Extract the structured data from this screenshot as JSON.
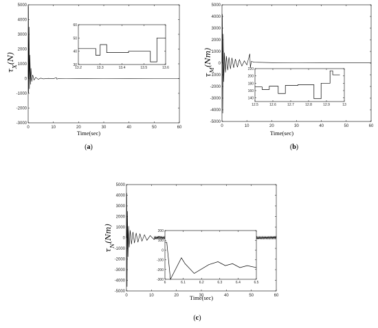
{
  "chart_data": [
    {
      "type": "line",
      "caption": "(a)",
      "ylabel": "τX(N)",
      "xlabel": "Time(sec)",
      "xlim": [
        0,
        60
      ],
      "ylim": [
        -3000,
        5000
      ],
      "xticks": [
        0,
        10,
        20,
        30,
        40,
        50,
        60
      ],
      "yticks": [
        -3000,
        -2000,
        -1000,
        0,
        1000,
        2000,
        3000,
        4000,
        5000
      ],
      "series": [
        {
          "x": [
            0,
            0.1,
            0.2,
            0.35,
            0.5,
            0.7,
            0.9,
            1.1,
            1.4,
            1.8,
            2.3,
            3,
            4,
            5,
            6,
            8,
            10,
            11.2,
            11.4,
            12,
            15,
            20,
            30,
            40,
            50,
            60
          ],
          "y": [
            0,
            4900,
            -1000,
            3500,
            -700,
            1600,
            -400,
            700,
            -200,
            250,
            -100,
            80,
            -50,
            30,
            -20,
            15,
            -10,
            60,
            -40,
            10,
            0,
            5,
            0,
            3,
            0,
            0
          ]
        }
      ],
      "inset": {
        "xlim": [
          13.2,
          13.6
        ],
        "ylim": [
          30,
          60
        ],
        "xticks": [
          13.2,
          13.3,
          13.4,
          13.5,
          13.6
        ],
        "yticks": [
          30,
          40,
          50,
          60
        ],
        "series": [
          {
            "x": [
              13.2,
              13.28,
              13.28,
              13.3,
              13.3,
              13.33,
              13.33,
              13.43,
              13.43,
              13.53,
              13.53,
              13.56,
              13.56,
              13.6
            ],
            "y": [
              42,
              42,
              37,
              37,
              45,
              45,
              39,
              39,
              40,
              40,
              32,
              32,
              50,
              50
            ]
          }
        ]
      }
    },
    {
      "type": "line",
      "caption": "(b)",
      "ylabel": "τM(Nm)",
      "xlabel": "Time(sec)",
      "xlim": [
        0,
        60
      ],
      "ylim": [
        -5000,
        5000
      ],
      "xticks": [
        0,
        10,
        20,
        30,
        40,
        50,
        60
      ],
      "yticks": [
        -5000,
        -4000,
        -3000,
        -2000,
        -1000,
        0,
        1000,
        2000,
        3000,
        4000,
        5000
      ],
      "series": [
        {
          "x": [
            0,
            0.15,
            0.3,
            0.5,
            0.7,
            1,
            1.4,
            1.8,
            2.3,
            2.8,
            3.4,
            4,
            4.7,
            5.4,
            6.2,
            7,
            8,
            9,
            10,
            11.2,
            11.4,
            11.8,
            13,
            16,
            20,
            30,
            40,
            50,
            60
          ],
          "y": [
            0,
            4200,
            -4300,
            2500,
            -1600,
            900,
            -800,
            600,
            -600,
            500,
            -500,
            450,
            -400,
            350,
            -350,
            300,
            -250,
            200,
            -150,
            800,
            -400,
            150,
            80,
            60,
            40,
            30,
            20,
            20,
            20
          ]
        }
      ],
      "inset": {
        "xlim": [
          12.5,
          13
        ],
        "ylim": [
          130,
          220
        ],
        "xticks": [
          12.5,
          12.6,
          12.7,
          12.8,
          12.9,
          13
        ],
        "yticks": [
          140,
          160,
          180,
          200,
          220
        ],
        "series": [
          {
            "x": [
              12.5,
              12.54,
              12.54,
              12.58,
              12.58,
              12.63,
              12.63,
              12.67,
              12.67,
              12.74,
              12.74,
              12.83,
              12.83,
              12.87,
              12.87,
              12.92,
              12.92,
              12.935,
              12.935,
              12.975
            ],
            "y": [
              170,
              170,
              163,
              163,
              172,
              172,
              152,
              152,
              174,
              174,
              176,
              176,
              138,
              138,
              180,
              180,
              214,
              214,
              203,
              203
            ]
          }
        ]
      }
    },
    {
      "type": "line",
      "caption": "(c)",
      "ylabel": "τN(Nm)",
      "xlabel": "Time(sec)",
      "xlim": [
        0,
        60
      ],
      "ylim": [
        -5000,
        5000
      ],
      "xticks": [
        0,
        10,
        20,
        30,
        40,
        50,
        60
      ],
      "yticks": [
        -5000,
        -4000,
        -3000,
        -2000,
        -1000,
        0,
        1000,
        2000,
        3000,
        4000,
        5000
      ],
      "series": [
        {
          "x": [
            0,
            0.12,
            0.25,
            0.4,
            0.6,
            0.85,
            1.1,
            1.5,
            2,
            2.6,
            3.2,
            3.9,
            4.6,
            5.4,
            6.2,
            7.2,
            8.2,
            9.5,
            11,
            13,
            16,
            20,
            30,
            40,
            50,
            60
          ],
          "y": [
            0,
            4200,
            -4600,
            2500,
            -1800,
            1100,
            -900,
            700,
            -600,
            550,
            -500,
            450,
            -420,
            380,
            -320,
            280,
            -240,
            200,
            -160,
            130,
            -120,
            120,
            -120,
            120,
            -120,
            100
          ]
        }
      ],
      "inset": {
        "xlim": [
          6,
          6.5
        ],
        "ylim": [
          -300,
          200
        ],
        "xticks": [
          6,
          6.1,
          6.2,
          6.3,
          6.4,
          6.5
        ],
        "yticks": [
          -300,
          -200,
          -100,
          0,
          100,
          200
        ],
        "series": [
          {
            "x": [
              6,
              6.01,
              6.03,
              6.03,
              6.09,
              6.09,
              6.11,
              6.11,
              6.16,
              6.16,
              6.24,
              6.24,
              6.29,
              6.29,
              6.33,
              6.33,
              6.37,
              6.37,
              6.41,
              6.41,
              6.45,
              6.45,
              6.5
            ],
            "y": [
              80,
              80,
              -300,
              -300,
              -80,
              -80,
              -140,
              -140,
              -240,
              -240,
              -150,
              -150,
              -120,
              -120,
              -160,
              -160,
              -140,
              -140,
              -180,
              -180,
              -160,
              -160,
              -180
            ]
          }
        ]
      }
    }
  ]
}
